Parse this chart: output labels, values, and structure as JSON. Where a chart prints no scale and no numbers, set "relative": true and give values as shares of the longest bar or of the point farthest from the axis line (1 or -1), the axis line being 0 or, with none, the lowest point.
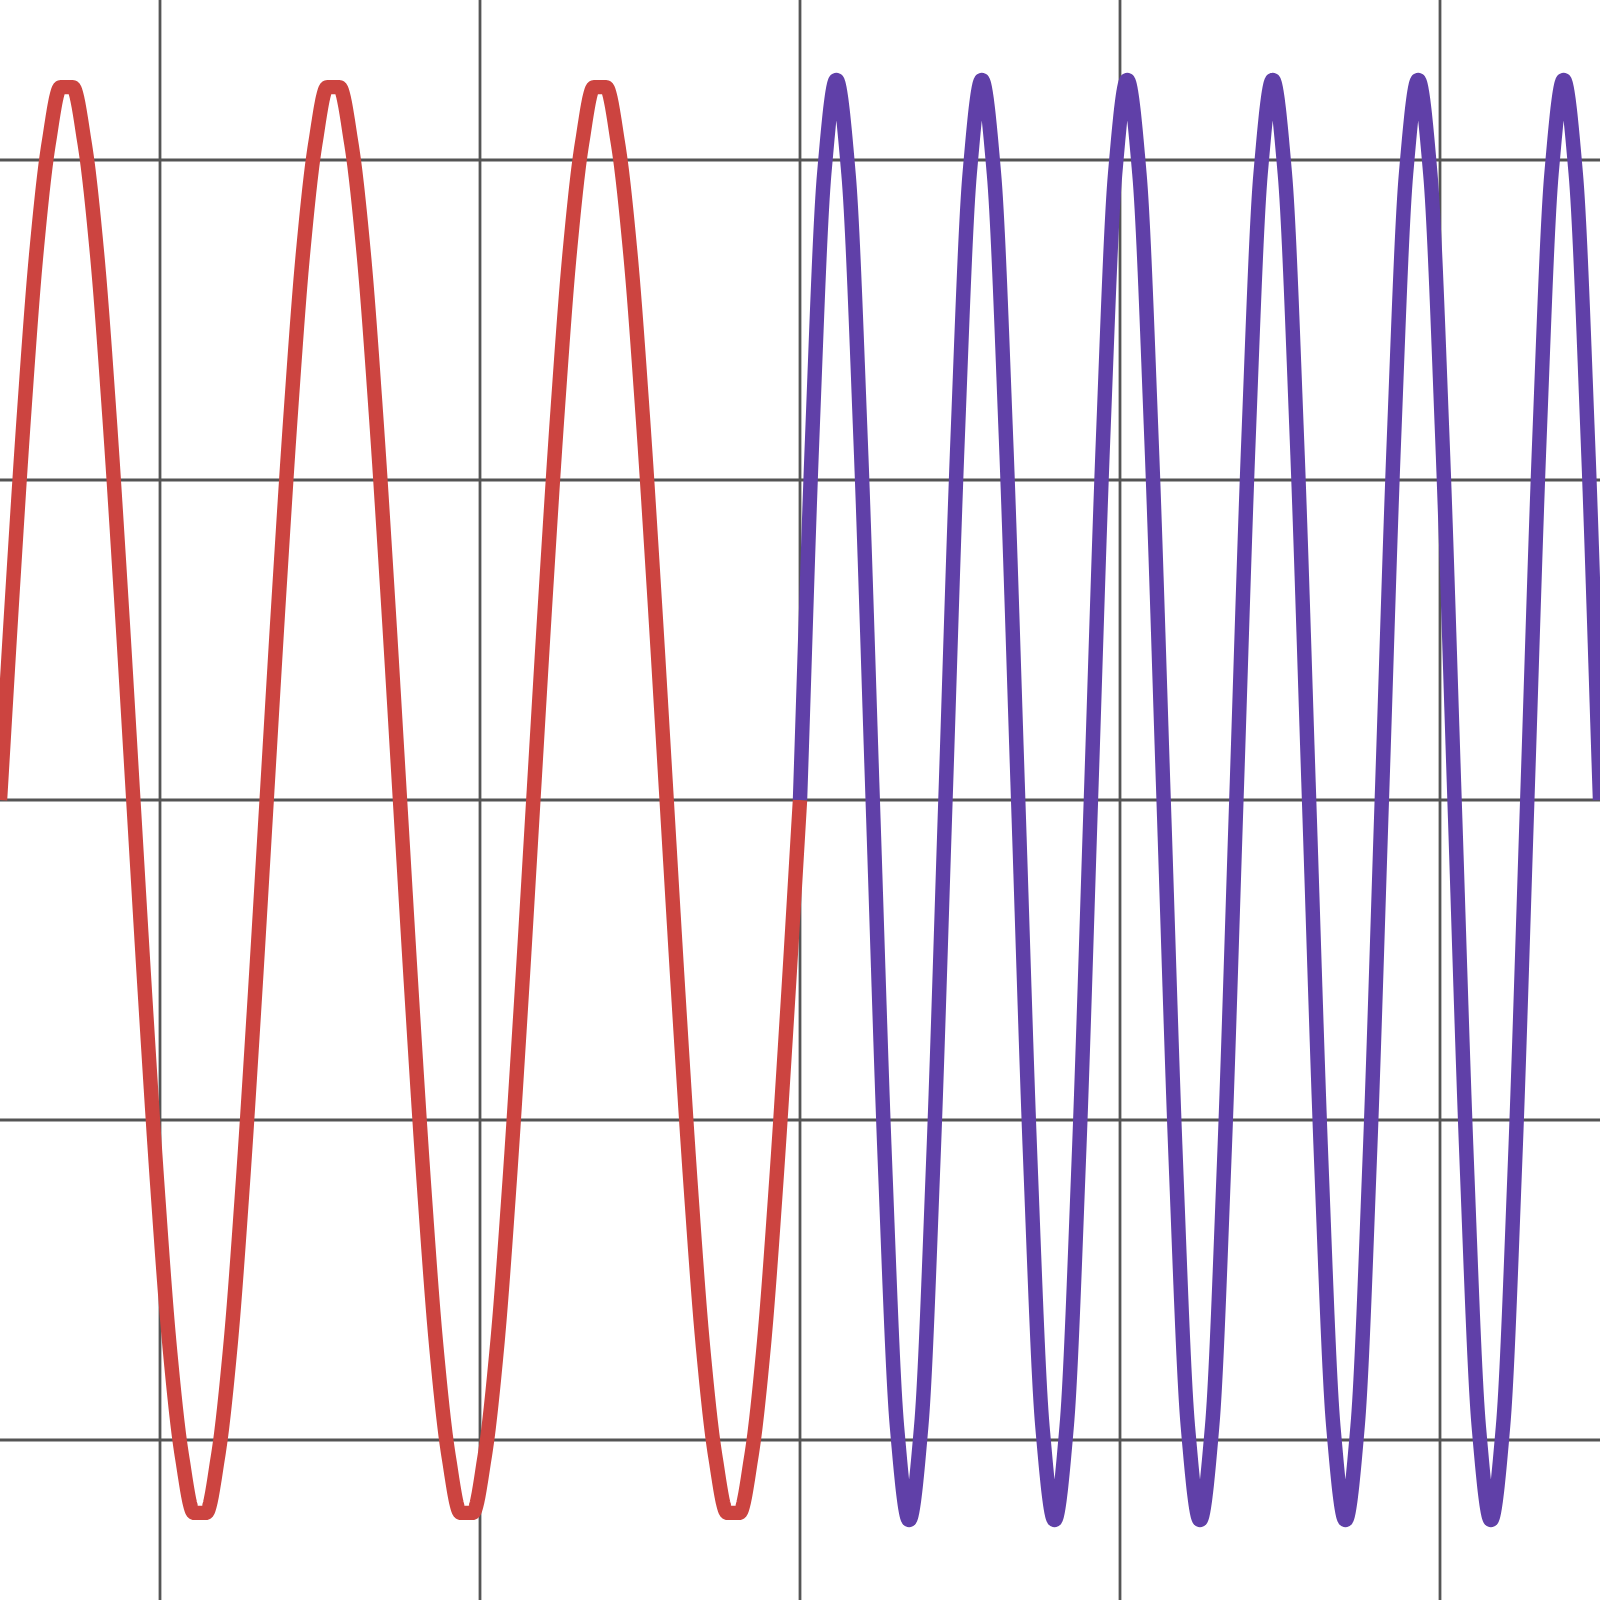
{
  "chart_data": {
    "type": "line",
    "relative": true,
    "grid": true,
    "tick_labels": false,
    "categories": [
      null,
      null,
      null,
      null,
      null,
      null,
      null,
      null,
      null,
      null,
      null,
      null,
      null,
      null,
      null,
      null,
      null,
      null,
      null,
      null,
      null,
      null,
      null,
      null,
      null,
      null,
      null,
      null,
      null,
      null,
      null,
      null,
      null,
      null,
      null,
      null,
      null,
      null,
      null,
      null,
      null,
      null,
      null,
      null,
      null,
      null,
      null,
      null,
      null,
      null,
      null,
      null,
      null,
      null,
      null,
      null,
      null,
      null,
      null,
      null,
      null,
      null,
      null,
      null,
      null,
      null,
      null,
      null,
      null,
      null,
      null,
      null,
      null,
      null,
      null,
      null,
      null,
      null,
      null,
      null,
      null,
      null,
      null,
      null,
      null,
      null,
      null,
      null,
      null,
      null,
      null,
      null,
      null,
      null,
      null,
      null,
      null,
      null,
      null,
      null,
      null,
      null,
      null,
      null,
      null,
      null,
      null,
      null,
      null,
      null,
      null,
      null,
      null,
      null,
      null,
      null,
      null,
      null,
      null,
      null,
      null,
      null,
      null,
      null,
      null,
      null,
      null,
      null,
      null,
      null,
      null,
      null,
      null
    ],
    "series": [
      {
        "color": "#cc4440",
        "values": [
          0,
          0.28,
          0.54,
          0.76,
          0.91,
          0.99,
          0.99,
          0.91,
          0.76,
          0.54,
          0.28,
          0,
          -0.28,
          -0.54,
          -0.76,
          -0.91,
          -0.99,
          -0.99,
          -0.91,
          -0.76,
          -0.54,
          -0.28,
          0,
          0.28,
          0.54,
          0.76,
          0.91,
          0.99,
          0.99,
          0.91,
          0.76,
          0.54,
          0.28,
          0,
          -0.28,
          -0.54,
          -0.76,
          -0.91,
          -0.99,
          -0.99,
          -0.91,
          -0.76,
          -0.54,
          -0.28,
          0,
          0.28,
          0.54,
          0.76,
          0.91,
          0.99,
          0.99,
          0.91,
          0.76,
          0.54,
          0.28,
          0,
          -0.28,
          -0.54,
          -0.76,
          -0.91,
          -0.99,
          -0.99,
          -0.91,
          -0.76,
          -0.54,
          -0.28,
          0,
          null,
          null,
          null,
          null,
          null,
          null,
          null,
          null,
          null,
          null,
          null,
          null,
          null,
          null,
          null,
          null,
          null,
          null,
          null,
          null,
          null,
          null,
          null,
          null,
          null,
          null,
          null,
          null,
          null,
          null,
          null,
          null,
          null,
          null,
          null,
          null,
          null,
          null,
          null,
          null,
          null,
          null,
          null,
          null,
          null,
          null,
          null,
          null,
          null,
          null,
          null,
          null,
          null,
          null,
          null,
          null,
          null,
          null,
          null,
          null,
          null,
          null,
          null,
          null,
          null,
          null
        ]
      },
      {
        "color": "#6040a8",
        "values": [
          null,
          null,
          null,
          null,
          null,
          null,
          null,
          null,
          null,
          null,
          null,
          null,
          null,
          null,
          null,
          null,
          null,
          null,
          null,
          null,
          null,
          null,
          null,
          null,
          null,
          null,
          null,
          null,
          null,
          null,
          null,
          null,
          null,
          null,
          null,
          null,
          null,
          null,
          null,
          null,
          null,
          null,
          null,
          null,
          null,
          null,
          null,
          null,
          null,
          null,
          null,
          null,
          null,
          null,
          null,
          null,
          null,
          null,
          null,
          null,
          null,
          null,
          null,
          null,
          null,
          null,
          0,
          0.5,
          0.87,
          1,
          0.87,
          0.5,
          0,
          -0.5,
          -0.87,
          -1,
          -0.87,
          -0.5,
          0,
          0.5,
          0.87,
          1,
          0.87,
          0.5,
          0,
          -0.5,
          -0.87,
          -1,
          -0.87,
          -0.5,
          0,
          0.5,
          0.87,
          1,
          0.87,
          0.5,
          0,
          -0.5,
          -0.87,
          -1,
          -0.87,
          -0.5,
          0,
          0.5,
          0.87,
          1,
          0.87,
          0.5,
          0,
          -0.5,
          -0.87,
          -1,
          -0.87,
          -0.5,
          0,
          0.5,
          0.87,
          1,
          0.87,
          0.5,
          0,
          -0.5,
          -0.87,
          -1,
          -0.87,
          -0.5,
          0,
          0.5,
          0.87,
          1,
          0.87,
          0.5,
          0
        ]
      }
    ]
  }
}
